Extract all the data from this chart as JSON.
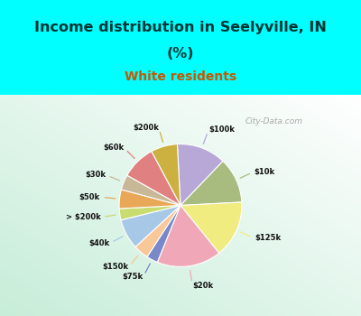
{
  "title_line1": "Income distribution in Seelyville, IN",
  "title_line2": "(%)",
  "subtitle": "White residents",
  "title_color": "#003333",
  "subtitle_color": "#cc5500",
  "bg_cyan": "#00ffff",
  "labels": [
    "$100k",
    "$10k",
    "$125k",
    "$20k",
    "$75k",
    "$150k",
    "$40k",
    "> $200k",
    "$50k",
    "$30k",
    "$60k",
    "$200k"
  ],
  "values": [
    13,
    12,
    15,
    17,
    3,
    4,
    8,
    3,
    5,
    4,
    9,
    7
  ],
  "colors": [
    "#b8a8d8",
    "#a8bc80",
    "#f0ec80",
    "#f0a8b8",
    "#7888c8",
    "#f8c898",
    "#a8c8e8",
    "#c8dc70",
    "#e8a858",
    "#c8b898",
    "#e08080",
    "#ccb040"
  ],
  "startangle": 93,
  "watermark": "City-Data.com"
}
